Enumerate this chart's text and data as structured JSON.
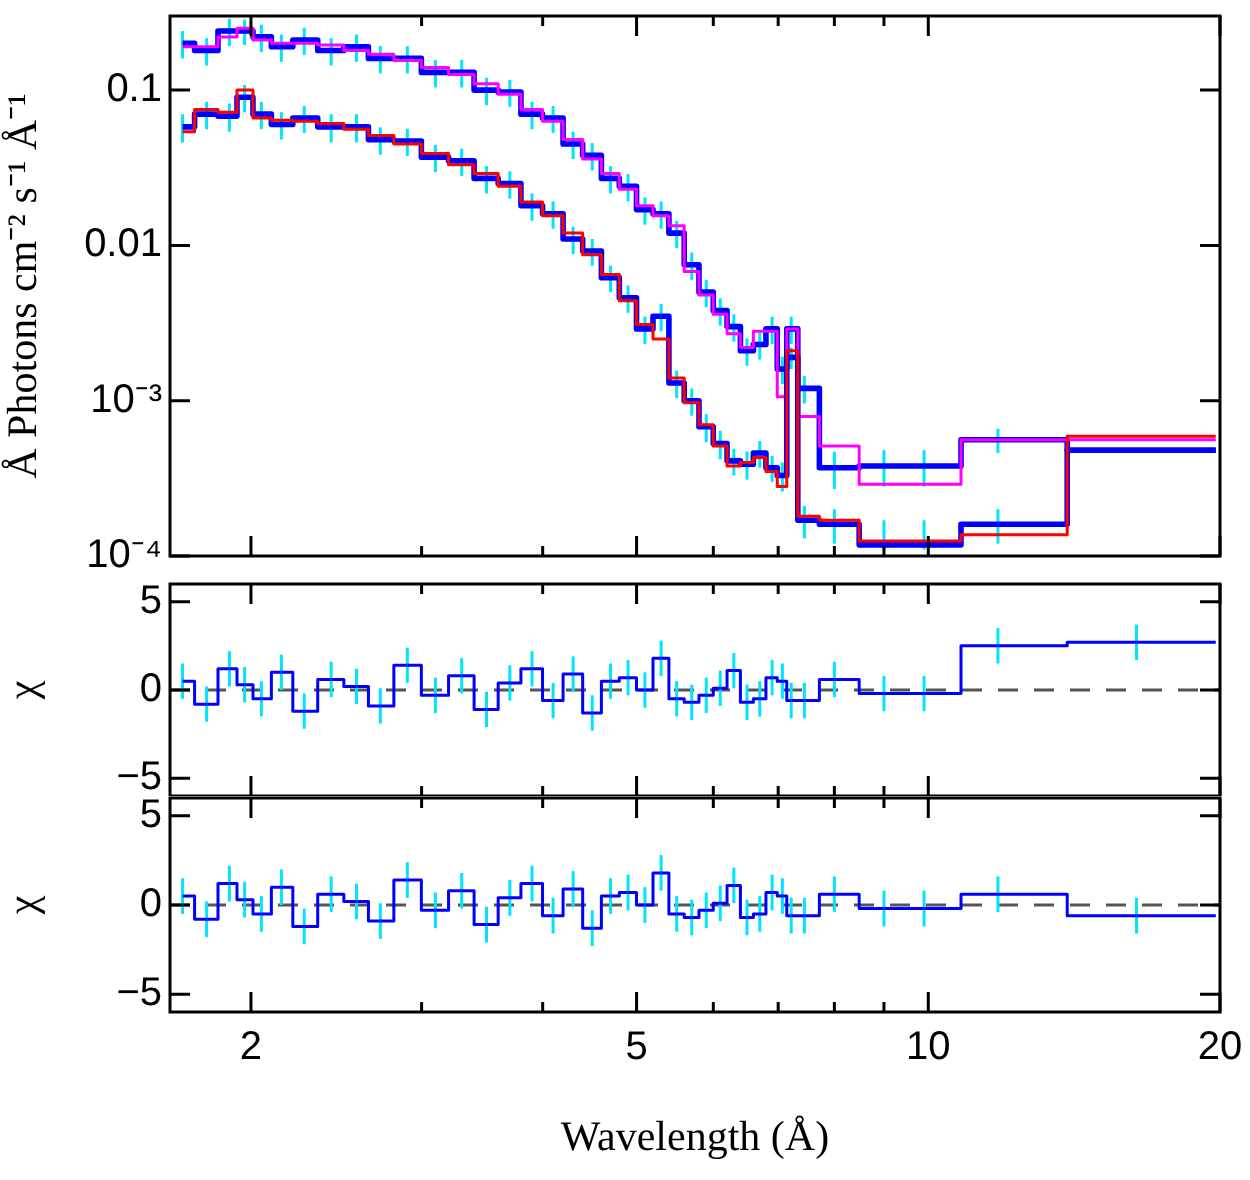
{
  "chart_data": [
    {
      "type": "step",
      "ylabel": "Å Photons cm⁻² s⁻¹ Å⁻¹",
      "log": "xy",
      "tick_labels": "y",
      "xlim": [
        1.65,
        20
      ],
      "ylim": [
        0.0001,
        0.3
      ],
      "xticks": [
        2,
        {
          "value": 3,
          "label": null
        },
        {
          "value": 4,
          "label": null
        },
        5,
        {
          "value": 6,
          "label": null
        },
        {
          "value": 7,
          "label": null
        },
        {
          "value": 8,
          "label": null
        },
        {
          "value": 9,
          "label": null
        },
        10,
        20
      ],
      "yticks": [
        {
          "value": 0.0001,
          "label": "10⁻⁴"
        },
        {
          "value": 0.001,
          "label": "10⁻³"
        },
        0.01,
        0.1
      ],
      "x": [
        1.7,
        1.8,
        1.9,
        1.97,
        2.05,
        2.15,
        2.27,
        2.42,
        2.57,
        2.72,
        2.9,
        3.1,
        3.3,
        3.5,
        3.7,
        3.9,
        4.1,
        4.3,
        4.5,
        4.7,
        4.9,
        5.1,
        5.3,
        5.5,
        5.7,
        5.9,
        6.1,
        6.3,
        6.5,
        6.7,
        6.9,
        7.07,
        7.22,
        7.45,
        8.0,
        9.0,
        9.9,
        11.8,
        16.4,
        19.8
      ],
      "series": [
        {
          "color": "#0000ff",
          "values": [
            0.2,
            0.18,
            0.24,
            0.24,
            0.22,
            0.19,
            0.21,
            0.18,
            0.19,
            0.16,
            0.16,
            0.13,
            0.13,
            0.1,
            0.097,
            0.07,
            0.066,
            0.045,
            0.038,
            0.027,
            0.024,
            0.017,
            0.016,
            0.012,
            0.0075,
            0.005,
            0.0038,
            0.003,
            0.0021,
            0.0023,
            0.0029,
            0.0016,
            0.0029,
            0.0012,
            0.00037,
            0.00038,
            0.00038,
            0.00056,
            0.00048,
            0.00048
          ],
          "errors": [
            0.04,
            0.036,
            0.048,
            0.045,
            0.044,
            0.038,
            0.042,
            0.036,
            0.038,
            0.032,
            0.032,
            0.026,
            0.026,
            0.02,
            0.019,
            0.014,
            0.013,
            0.009,
            0.0076,
            0.0054,
            0.0048,
            0.0034,
            0.0032,
            0.0024,
            0.0015,
            0.001,
            0.00076,
            0.0006,
            0.00042,
            0.00046,
            0.00058,
            0.00032,
            0.00058,
            0.00024,
            0.0001,
            0.0001,
            0.0001,
            0.0001,
            null,
            null
          ]
        },
        {
          "color": "#ff00ff",
          "values": [
            0.19,
            0.19,
            0.22,
            0.25,
            0.21,
            0.2,
            0.2,
            0.195,
            0.18,
            0.17,
            0.155,
            0.14,
            0.126,
            0.11,
            0.094,
            0.075,
            0.063,
            0.048,
            0.036,
            0.029,
            0.023,
            0.018,
            0.0155,
            0.0134,
            0.0068,
            0.0048,
            0.0036,
            0.0027,
            0.0022,
            0.0028,
            0.0028,
            0.00106,
            0.0029,
            0.00079,
            0.00051,
            0.00029,
            0.00029,
            0.00056,
            0.00056,
            0.00056
          ]
        },
        {
          "color": "#0000ff",
          "values": [
            0.058,
            0.07,
            0.068,
            0.09,
            0.07,
            0.06,
            0.066,
            0.058,
            0.058,
            0.048,
            0.047,
            0.037,
            0.035,
            0.027,
            0.025,
            0.018,
            0.016,
            0.011,
            0.0092,
            0.0062,
            0.0046,
            0.0029,
            0.0035,
            0.0013,
            0.001,
            0.00068,
            0.00053,
            0.00041,
            0.00039,
            0.00046,
            0.00037,
            0.00033,
            0.0019,
            0.00017,
            0.00016,
            0.000118,
            0.000118,
            0.00016,
            0.00048,
            0.00048
          ],
          "errors": [
            0.012,
            0.014,
            0.014,
            0.018,
            0.014,
            0.012,
            0.013,
            0.012,
            0.012,
            0.0096,
            0.0094,
            0.0074,
            0.007,
            0.0054,
            0.005,
            0.0036,
            0.0032,
            0.0022,
            0.0018,
            0.0012,
            0.00092,
            0.00058,
            0.0007,
            0.00026,
            0.0002,
            0.00014,
            0.00011,
            8e-05,
            8e-05,
            9e-05,
            7e-05,
            7e-05,
            0.0003,
            4e-05,
            4e-05,
            [
              0.00011,
              0.00017
            ],
            [
              0.00011,
              0.00017
            ],
            4e-05,
            null,
            null
          ]
        },
        {
          "color": "#ff0000",
          "values": [
            0.054,
            0.075,
            0.072,
            0.1,
            0.066,
            0.064,
            0.063,
            0.061,
            0.056,
            0.051,
            0.045,
            0.039,
            0.033,
            0.029,
            0.024,
            0.019,
            0.0155,
            0.012,
            0.0087,
            0.0065,
            0.0044,
            0.0031,
            0.0025,
            0.0014,
            0.00097,
            0.0007,
            0.00051,
            0.00038,
            0.0004,
            0.00043,
            0.00035,
            0.00028,
            0.0021,
            0.00018,
            0.00017,
            0.000125,
            0.000125,
            0.000137,
            0.00059,
            0.00059
          ]
        }
      ]
    },
    {
      "type": "step",
      "ylabel": "χ",
      "log": "x",
      "tick_labels": "y",
      "xlim": [
        1.65,
        20
      ],
      "ylim": [
        -6,
        6
      ],
      "xticks": [
        2,
        {
          "value": 3,
          "label": null
        },
        {
          "value": 4,
          "label": null
        },
        5,
        {
          "value": 6,
          "label": null
        },
        {
          "value": 7,
          "label": null
        },
        {
          "value": 8,
          "label": null
        },
        {
          "value": 9,
          "label": null
        },
        10,
        20
      ],
      "yticks": [
        {
          "value": -5,
          "label": "−5"
        },
        0,
        5
      ],
      "ref_lines": [
        {
          "axis": "y",
          "value": 0,
          "color": "#555555",
          "line_style": "dashed"
        }
      ],
      "x": [
        1.7,
        1.8,
        1.9,
        1.97,
        2.05,
        2.15,
        2.27,
        2.42,
        2.57,
        2.72,
        2.9,
        3.1,
        3.3,
        3.5,
        3.7,
        3.9,
        4.1,
        4.3,
        4.5,
        4.7,
        4.9,
        5.1,
        5.3,
        5.5,
        5.7,
        5.9,
        6.1,
        6.3,
        6.5,
        6.7,
        6.9,
        7.07,
        7.22,
        7.45,
        8.0,
        9.0,
        9.9,
        11.8,
        16.4,
        19.8
      ],
      "series": [
        {
          "color": "#0000ff",
          "values": [
            0.5,
            -0.8,
            1.2,
            0.3,
            -0.5,
            1.0,
            -1.2,
            0.6,
            0.2,
            -0.9,
            1.4,
            -0.3,
            0.8,
            -1.1,
            0.4,
            1.2,
            -0.6,
            0.9,
            -1.3,
            0.5,
            0.7,
            0,
            1.8,
            -0.5,
            -0.7,
            -0.3,
            0.1,
            1.1,
            -0.7,
            -0.5,
            0.7,
            0.5,
            -0.6,
            -0.6,
            0.6,
            -0.2,
            -0.2,
            2.5,
            2.7,
            2.7
          ],
          "errors": [
            1,
            1,
            1,
            1,
            1,
            1,
            1,
            1,
            1,
            1,
            1,
            1,
            1,
            1,
            1,
            1,
            1,
            1,
            1,
            1,
            1,
            1,
            1,
            1,
            1,
            1,
            1,
            1,
            1,
            1,
            1,
            1,
            1,
            1,
            1,
            1,
            1,
            1,
            1,
            null
          ]
        }
      ]
    },
    {
      "type": "step",
      "ylabel": "χ",
      "xlabel": "Wavelength (Å)",
      "log": "x",
      "xlim": [
        1.65,
        20
      ],
      "ylim": [
        -6,
        6
      ],
      "xticks": [
        2,
        {
          "value": 3,
          "label": null
        },
        {
          "value": 4,
          "label": null
        },
        5,
        {
          "value": 6,
          "label": null
        },
        {
          "value": 7,
          "label": null
        },
        {
          "value": 8,
          "label": null
        },
        {
          "value": 9,
          "label": null
        },
        10,
        20
      ],
      "yticks": [
        {
          "value": -5,
          "label": "−5"
        },
        0,
        5
      ],
      "ref_lines": [
        {
          "axis": "y",
          "value": 0,
          "color": "#555555",
          "line_style": "dashed"
        }
      ],
      "x": [
        1.7,
        1.8,
        1.9,
        1.97,
        2.05,
        2.15,
        2.27,
        2.42,
        2.57,
        2.72,
        2.9,
        3.1,
        3.3,
        3.5,
        3.7,
        3.9,
        4.1,
        4.3,
        4.5,
        4.7,
        4.9,
        5.1,
        5.3,
        5.5,
        5.7,
        5.9,
        6.1,
        6.3,
        6.5,
        6.7,
        6.9,
        7.07,
        7.22,
        7.45,
        8.0,
        9.0,
        9.9,
        11.8,
        16.4,
        19.8
      ],
      "series": [
        {
          "color": "#0000ff",
          "values": [
            0.5,
            -0.8,
            1.2,
            0.3,
            -0.5,
            1.0,
            -1.2,
            0.6,
            0.2,
            -0.9,
            1.4,
            -0.3,
            0.8,
            -1.1,
            0.4,
            1.2,
            -0.6,
            0.9,
            -1.3,
            0.5,
            0.7,
            0,
            1.8,
            -0.5,
            -0.7,
            -0.3,
            0.1,
            1.1,
            -0.7,
            -0.5,
            0.7,
            0.5,
            -0.6,
            -0.6,
            0.6,
            -0.2,
            -0.2,
            0.6,
            -0.6,
            -0.6
          ],
          "errors": [
            1,
            1,
            1,
            1,
            1,
            1,
            1,
            1,
            1,
            1,
            1,
            1,
            1,
            1,
            1,
            1,
            1,
            1,
            1,
            1,
            1,
            1,
            1,
            1,
            1,
            1,
            1,
            1,
            1,
            1,
            1,
            1,
            1,
            1,
            1,
            1,
            1,
            1,
            1,
            null
          ]
        }
      ]
    }
  ]
}
